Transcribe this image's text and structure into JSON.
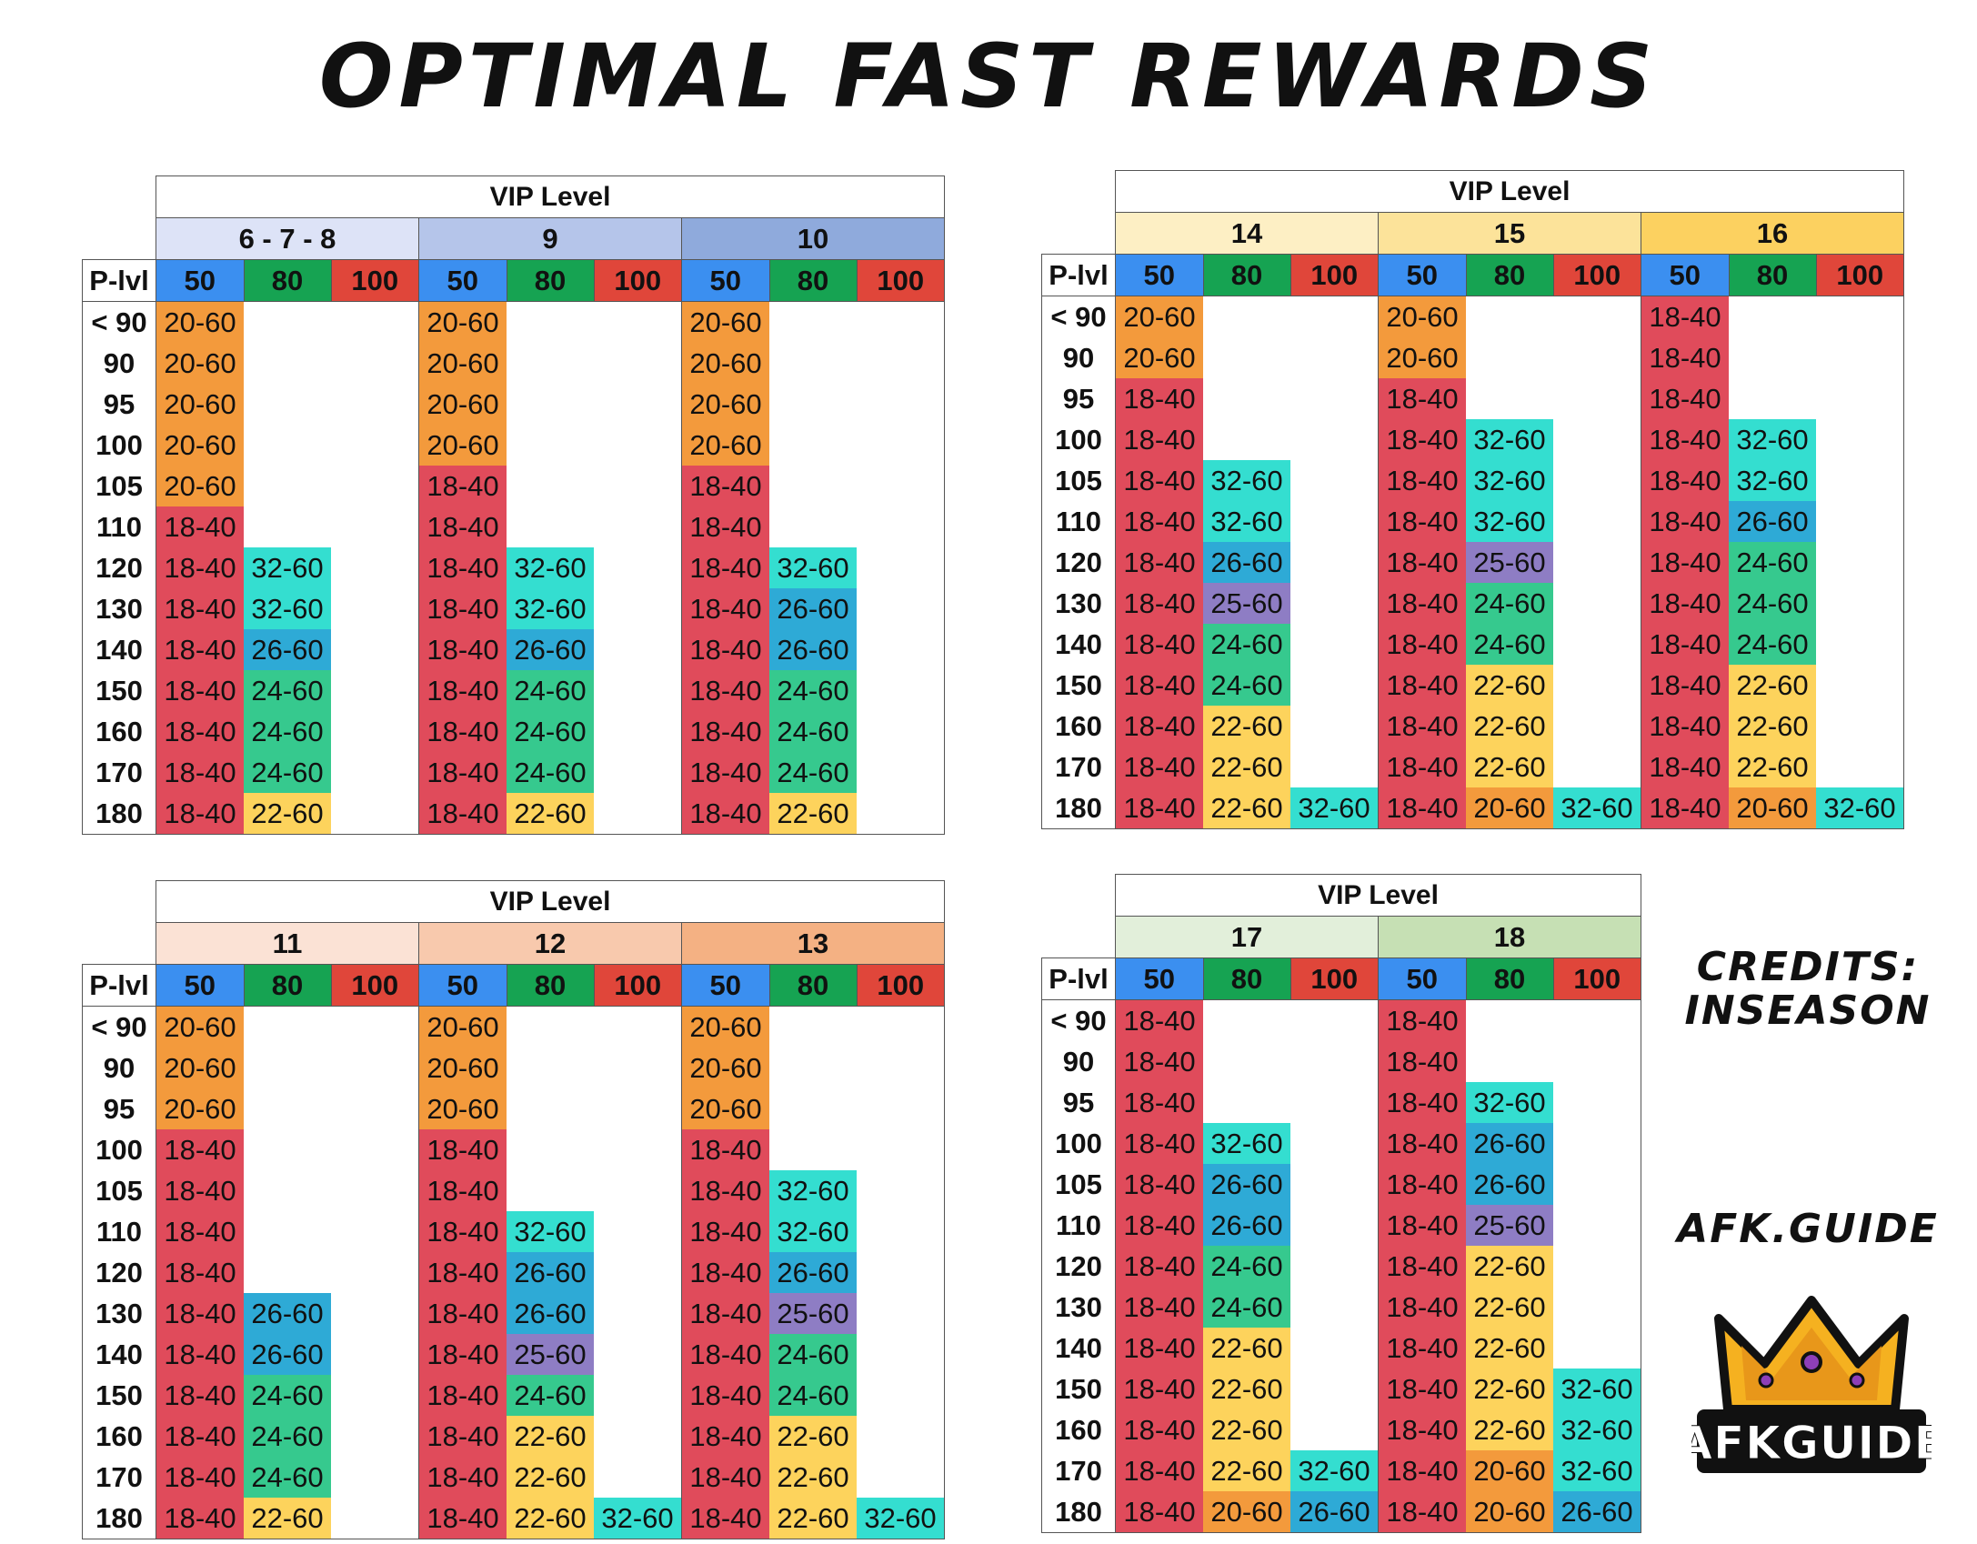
{
  "title": "OPTIMAL FAST REWARDS",
  "credits": "CREDITS: INSEASON",
  "site": "AFK.GUIDE",
  "logo_text": "AFKGUIDE",
  "colors": {
    "18-40": "#e04b5b",
    "20-60": "#f39a3c",
    "22-60": "#fdd35c",
    "24-60": "#36c98e",
    "25-60": "#8e7dc4",
    "26-60": "#2eaad6",
    "32-60": "#34ded0",
    "h50": "#3b8ff0",
    "h80": "#16a352",
    "h100": "#e0463a"
  },
  "tables": [
    {
      "vip_label": "VIP Level",
      "plvl_label": "P-lvl",
      "groups": [
        "6 - 7 - 8",
        "9",
        "10"
      ],
      "group_colors": [
        "#dde3f7",
        "#b5c5ea",
        "#8faadc"
      ],
      "headers": [
        "50",
        "80",
        "100"
      ],
      "rows": [
        {
          "p": "< 90",
          "cells": [
            "20-60",
            "",
            "",
            "20-60",
            "",
            "",
            "20-60",
            "",
            ""
          ]
        },
        {
          "p": "90",
          "cells": [
            "20-60",
            "",
            "",
            "20-60",
            "",
            "",
            "20-60",
            "",
            ""
          ]
        },
        {
          "p": "95",
          "cells": [
            "20-60",
            "",
            "",
            "20-60",
            "",
            "",
            "20-60",
            "",
            ""
          ]
        },
        {
          "p": "100",
          "cells": [
            "20-60",
            "",
            "",
            "20-60",
            "",
            "",
            "20-60",
            "",
            ""
          ]
        },
        {
          "p": "105",
          "cells": [
            "20-60",
            "",
            "",
            "18-40",
            "",
            "",
            "18-40",
            "",
            ""
          ]
        },
        {
          "p": "110",
          "cells": [
            "18-40",
            "",
            "",
            "18-40",
            "",
            "",
            "18-40",
            "",
            ""
          ]
        },
        {
          "p": "120",
          "cells": [
            "18-40",
            "32-60",
            "",
            "18-40",
            "32-60",
            "",
            "18-40",
            "32-60",
            ""
          ]
        },
        {
          "p": "130",
          "cells": [
            "18-40",
            "32-60",
            "",
            "18-40",
            "32-60",
            "",
            "18-40",
            "26-60",
            ""
          ]
        },
        {
          "p": "140",
          "cells": [
            "18-40",
            "26-60",
            "",
            "18-40",
            "26-60",
            "",
            "18-40",
            "26-60",
            ""
          ]
        },
        {
          "p": "150",
          "cells": [
            "18-40",
            "24-60",
            "",
            "18-40",
            "24-60",
            "",
            "18-40",
            "24-60",
            ""
          ]
        },
        {
          "p": "160",
          "cells": [
            "18-40",
            "24-60",
            "",
            "18-40",
            "24-60",
            "",
            "18-40",
            "24-60",
            ""
          ]
        },
        {
          "p": "170",
          "cells": [
            "18-40",
            "24-60",
            "",
            "18-40",
            "24-60",
            "",
            "18-40",
            "24-60",
            ""
          ]
        },
        {
          "p": "180",
          "cells": [
            "18-40",
            "22-60",
            "",
            "18-40",
            "22-60",
            "",
            "18-40",
            "22-60",
            ""
          ]
        }
      ]
    },
    {
      "vip_label": "VIP Level",
      "plvl_label": "P-lvl",
      "groups": [
        "14",
        "15",
        "16"
      ],
      "group_colors": [
        "#fdefc4",
        "#fce39a",
        "#fcd160"
      ],
      "headers": [
        "50",
        "80",
        "100"
      ],
      "rows": [
        {
          "p": "< 90",
          "cells": [
            "20-60",
            "",
            "",
            "20-60",
            "",
            "",
            "18-40",
            "",
            ""
          ]
        },
        {
          "p": "90",
          "cells": [
            "20-60",
            "",
            "",
            "20-60",
            "",
            "",
            "18-40",
            "",
            ""
          ]
        },
        {
          "p": "95",
          "cells": [
            "18-40",
            "",
            "",
            "18-40",
            "",
            "",
            "18-40",
            "",
            ""
          ]
        },
        {
          "p": "100",
          "cells": [
            "18-40",
            "",
            "",
            "18-40",
            "32-60",
            "",
            "18-40",
            "32-60",
            ""
          ]
        },
        {
          "p": "105",
          "cells": [
            "18-40",
            "32-60",
            "",
            "18-40",
            "32-60",
            "",
            "18-40",
            "32-60",
            ""
          ]
        },
        {
          "p": "110",
          "cells": [
            "18-40",
            "32-60",
            "",
            "18-40",
            "32-60",
            "",
            "18-40",
            "26-60",
            ""
          ]
        },
        {
          "p": "120",
          "cells": [
            "18-40",
            "26-60",
            "",
            "18-40",
            "25-60",
            "",
            "18-40",
            "24-60",
            ""
          ]
        },
        {
          "p": "130",
          "cells": [
            "18-40",
            "25-60",
            "",
            "18-40",
            "24-60",
            "",
            "18-40",
            "24-60",
            ""
          ]
        },
        {
          "p": "140",
          "cells": [
            "18-40",
            "24-60",
            "",
            "18-40",
            "24-60",
            "",
            "18-40",
            "24-60",
            ""
          ]
        },
        {
          "p": "150",
          "cells": [
            "18-40",
            "24-60",
            "",
            "18-40",
            "22-60",
            "",
            "18-40",
            "22-60",
            ""
          ]
        },
        {
          "p": "160",
          "cells": [
            "18-40",
            "22-60",
            "",
            "18-40",
            "22-60",
            "",
            "18-40",
            "22-60",
            ""
          ]
        },
        {
          "p": "170",
          "cells": [
            "18-40",
            "22-60",
            "",
            "18-40",
            "22-60",
            "",
            "18-40",
            "22-60",
            ""
          ]
        },
        {
          "p": "180",
          "cells": [
            "18-40",
            "22-60",
            "32-60",
            "18-40",
            "20-60",
            "32-60",
            "18-40",
            "20-60",
            "32-60"
          ]
        }
      ]
    },
    {
      "vip_label": "VIP Level",
      "plvl_label": "P-lvl",
      "groups": [
        "11",
        "12",
        "13"
      ],
      "group_colors": [
        "#fbe2d5",
        "#f8c9ad",
        "#f4b183"
      ],
      "headers": [
        "50",
        "80",
        "100"
      ],
      "rows": [
        {
          "p": "< 90",
          "cells": [
            "20-60",
            "",
            "",
            "20-60",
            "",
            "",
            "20-60",
            "",
            ""
          ]
        },
        {
          "p": "90",
          "cells": [
            "20-60",
            "",
            "",
            "20-60",
            "",
            "",
            "20-60",
            "",
            ""
          ]
        },
        {
          "p": "95",
          "cells": [
            "20-60",
            "",
            "",
            "20-60",
            "",
            "",
            "20-60",
            "",
            ""
          ]
        },
        {
          "p": "100",
          "cells": [
            "18-40",
            "",
            "",
            "18-40",
            "",
            "",
            "18-40",
            "",
            ""
          ]
        },
        {
          "p": "105",
          "cells": [
            "18-40",
            "",
            "",
            "18-40",
            "",
            "",
            "18-40",
            "32-60",
            ""
          ]
        },
        {
          "p": "110",
          "cells": [
            "18-40",
            "",
            "",
            "18-40",
            "32-60",
            "",
            "18-40",
            "32-60",
            ""
          ]
        },
        {
          "p": "120",
          "cells": [
            "18-40",
            "",
            "",
            "18-40",
            "26-60",
            "",
            "18-40",
            "26-60",
            ""
          ]
        },
        {
          "p": "130",
          "cells": [
            "18-40",
            "26-60",
            "",
            "18-40",
            "26-60",
            "",
            "18-40",
            "25-60",
            ""
          ]
        },
        {
          "p": "140",
          "cells": [
            "18-40",
            "26-60",
            "",
            "18-40",
            "25-60",
            "",
            "18-40",
            "24-60",
            ""
          ]
        },
        {
          "p": "150",
          "cells": [
            "18-40",
            "24-60",
            "",
            "18-40",
            "24-60",
            "",
            "18-40",
            "24-60",
            ""
          ]
        },
        {
          "p": "160",
          "cells": [
            "18-40",
            "24-60",
            "",
            "18-40",
            "22-60",
            "",
            "18-40",
            "22-60",
            ""
          ]
        },
        {
          "p": "170",
          "cells": [
            "18-40",
            "24-60",
            "",
            "18-40",
            "22-60",
            "",
            "18-40",
            "22-60",
            ""
          ]
        },
        {
          "p": "180",
          "cells": [
            "18-40",
            "22-60",
            "",
            "18-40",
            "22-60",
            "32-60",
            "18-40",
            "22-60",
            "32-60"
          ]
        }
      ]
    },
    {
      "vip_label": "VIP Level",
      "plvl_label": "P-lvl",
      "groups": [
        "17",
        "18"
      ],
      "group_colors": [
        "#e2efda",
        "#c6e0b4"
      ],
      "headers": [
        "50",
        "80",
        "100"
      ],
      "rows": [
        {
          "p": "< 90",
          "cells": [
            "18-40",
            "",
            "",
            "18-40",
            "",
            ""
          ]
        },
        {
          "p": "90",
          "cells": [
            "18-40",
            "",
            "",
            "18-40",
            "",
            ""
          ]
        },
        {
          "p": "95",
          "cells": [
            "18-40",
            "",
            "",
            "18-40",
            "32-60",
            ""
          ]
        },
        {
          "p": "100",
          "cells": [
            "18-40",
            "32-60",
            "",
            "18-40",
            "26-60",
            ""
          ]
        },
        {
          "p": "105",
          "cells": [
            "18-40",
            "26-60",
            "",
            "18-40",
            "26-60",
            ""
          ]
        },
        {
          "p": "110",
          "cells": [
            "18-40",
            "26-60",
            "",
            "18-40",
            "25-60",
            ""
          ]
        },
        {
          "p": "120",
          "cells": [
            "18-40",
            "24-60",
            "",
            "18-40",
            "22-60",
            ""
          ]
        },
        {
          "p": "130",
          "cells": [
            "18-40",
            "24-60",
            "",
            "18-40",
            "22-60",
            ""
          ]
        },
        {
          "p": "140",
          "cells": [
            "18-40",
            "22-60",
            "",
            "18-40",
            "22-60",
            ""
          ]
        },
        {
          "p": "150",
          "cells": [
            "18-40",
            "22-60",
            "",
            "18-40",
            "22-60",
            "32-60"
          ]
        },
        {
          "p": "160",
          "cells": [
            "18-40",
            "22-60",
            "",
            "18-40",
            "22-60",
            "32-60"
          ]
        },
        {
          "p": "170",
          "cells": [
            "18-40",
            "22-60",
            "32-60",
            "18-40",
            "20-60",
            "32-60"
          ]
        },
        {
          "p": "180",
          "cells": [
            "18-40",
            "20-60",
            "26-60",
            "18-40",
            "20-60",
            "26-60"
          ]
        }
      ]
    }
  ]
}
